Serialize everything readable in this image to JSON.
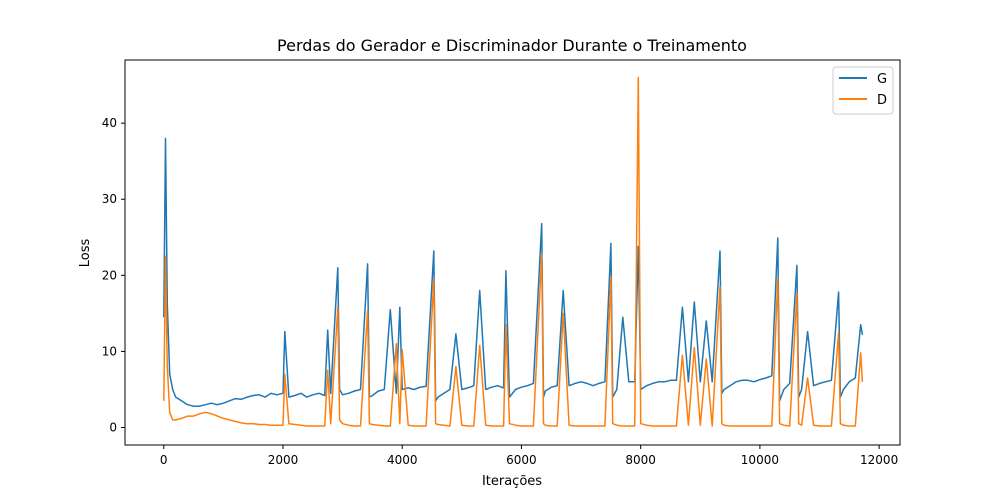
{
  "chart_data": {
    "type": "line",
    "title": "Perdas do Gerador e Discriminador Durante o Treinamento",
    "xlabel": "Iterações",
    "ylabel": "Loss",
    "xlim": [
      -650,
      12350
    ],
    "ylim": [
      -2.3,
      48.3
    ],
    "xticks": [
      0,
      2000,
      4000,
      6000,
      8000,
      10000,
      12000
    ],
    "xtick_labels": [
      "0",
      "2000",
      "4000",
      "6000",
      "8000",
      "10000",
      "12000"
    ],
    "yticks": [
      0,
      10,
      20,
      30,
      40
    ],
    "ytick_labels": [
      "0",
      "10",
      "20",
      "30",
      "40"
    ],
    "grid": false,
    "legend": {
      "placement": "upper-right"
    },
    "series": [
      {
        "name": "G",
        "color": "#1f77b4",
        "x": [
          0,
          30,
          60,
          100,
          150,
          200,
          300,
          400,
          500,
          600,
          700,
          800,
          900,
          1000,
          1100,
          1200,
          1300,
          1400,
          1500,
          1600,
          1700,
          1800,
          1900,
          2000,
          2030,
          2100,
          2200,
          2300,
          2400,
          2500,
          2600,
          2700,
          2750,
          2800,
          2920,
          2950,
          3000,
          3100,
          3200,
          3300,
          3420,
          3450,
          3500,
          3600,
          3700,
          3800,
          3900,
          3960,
          4000,
          4100,
          4200,
          4300,
          4400,
          4530,
          4560,
          4600,
          4700,
          4800,
          4900,
          5000,
          5100,
          5200,
          5300,
          5400,
          5500,
          5600,
          5700,
          5740,
          5800,
          5900,
          6000,
          6100,
          6200,
          6340,
          6370,
          6400,
          6500,
          6600,
          6700,
          6800,
          6900,
          7000,
          7100,
          7200,
          7300,
          7400,
          7500,
          7530,
          7600,
          7700,
          7800,
          7900,
          7960,
          8000,
          8100,
          8200,
          8300,
          8400,
          8500,
          8600,
          8700,
          8800,
          8900,
          9000,
          9100,
          9200,
          9330,
          9360,
          9400,
          9500,
          9600,
          9700,
          9800,
          9900,
          10000,
          10100,
          10200,
          10300,
          10330,
          10400,
          10500,
          10620,
          10650,
          10700,
          10800,
          10900,
          11000,
          11100,
          11200,
          11320,
          11350,
          11400,
          11500,
          11600,
          11690,
          11720
        ],
        "values": [
          14.5,
          38.0,
          16.2,
          7.0,
          5.0,
          4.0,
          3.5,
          3.0,
          2.8,
          2.8,
          3.0,
          3.2,
          3.0,
          3.2,
          3.5,
          3.8,
          3.7,
          4.0,
          4.2,
          4.3,
          4.0,
          4.5,
          4.3,
          4.5,
          12.6,
          4.0,
          4.2,
          4.5,
          4.0,
          4.3,
          4.5,
          4.2,
          12.8,
          4.5,
          21.0,
          5.0,
          4.3,
          4.5,
          4.8,
          5.0,
          21.5,
          4.0,
          4.2,
          4.8,
          5.0,
          15.5,
          4.5,
          15.8,
          5.0,
          5.2,
          5.0,
          5.3,
          5.4,
          23.2,
          3.5,
          4.0,
          4.5,
          5.0,
          12.3,
          5.0,
          5.2,
          5.5,
          18.0,
          5.0,
          5.3,
          5.5,
          5.2,
          20.6,
          4.0,
          5.0,
          5.3,
          5.5,
          5.8,
          26.8,
          4.0,
          4.8,
          5.3,
          5.5,
          18.0,
          5.5,
          5.8,
          6.0,
          5.8,
          5.5,
          5.8,
          6.0,
          24.2,
          4.0,
          5.0,
          14.5,
          6.0,
          6.0,
          23.8,
          5.0,
          5.5,
          5.8,
          6.0,
          6.0,
          6.2,
          6.2,
          15.8,
          6.0,
          16.5,
          6.0,
          14.0,
          6.0,
          23.2,
          4.5,
          5.0,
          5.5,
          6.0,
          6.2,
          6.2,
          6.0,
          6.3,
          6.5,
          6.8,
          24.9,
          3.5,
          5.0,
          5.8,
          21.3,
          4.0,
          5.0,
          12.6,
          5.5,
          5.8,
          6.0,
          6.2,
          17.8,
          4.0,
          5.0,
          6.0,
          6.5,
          13.5,
          12.2
        ]
      },
      {
        "name": "D",
        "color": "#ff7f0e",
        "x": [
          0,
          30,
          60,
          100,
          150,
          200,
          300,
          400,
          500,
          600,
          700,
          800,
          900,
          1000,
          1100,
          1200,
          1300,
          1400,
          1500,
          1600,
          1700,
          1800,
          1900,
          2000,
          2030,
          2100,
          2200,
          2300,
          2400,
          2500,
          2600,
          2700,
          2750,
          2800,
          2920,
          2950,
          3000,
          3100,
          3200,
          3300,
          3420,
          3450,
          3500,
          3600,
          3700,
          3800,
          3900,
          3960,
          4000,
          4100,
          4200,
          4300,
          4400,
          4530,
          4560,
          4600,
          4700,
          4800,
          4900,
          5000,
          5100,
          5200,
          5300,
          5400,
          5500,
          5600,
          5700,
          5740,
          5800,
          5900,
          6000,
          6100,
          6200,
          6340,
          6370,
          6400,
          6500,
          6600,
          6700,
          6800,
          6900,
          7000,
          7100,
          7200,
          7300,
          7400,
          7500,
          7530,
          7600,
          7700,
          7800,
          7900,
          7960,
          8000,
          8100,
          8200,
          8300,
          8400,
          8500,
          8600,
          8700,
          8800,
          8900,
          9000,
          9100,
          9200,
          9330,
          9360,
          9400,
          9500,
          9600,
          9700,
          9800,
          9900,
          10000,
          10100,
          10200,
          10300,
          10330,
          10400,
          10500,
          10620,
          10650,
          10700,
          10800,
          10900,
          11000,
          11100,
          11200,
          11320,
          11350,
          11400,
          11500,
          11600,
          11690,
          11720
        ],
        "values": [
          3.5,
          22.5,
          8.0,
          2.0,
          1.0,
          1.0,
          1.2,
          1.5,
          1.5,
          1.8,
          2.0,
          1.8,
          1.5,
          1.2,
          1.0,
          0.8,
          0.6,
          0.5,
          0.5,
          0.4,
          0.4,
          0.3,
          0.3,
          0.3,
          7.0,
          0.5,
          0.4,
          0.3,
          0.2,
          0.2,
          0.2,
          0.2,
          7.5,
          0.5,
          15.8,
          1.0,
          0.5,
          0.3,
          0.2,
          0.2,
          15.4,
          0.5,
          0.4,
          0.3,
          0.2,
          0.2,
          11.0,
          0.5,
          10.2,
          0.3,
          0.2,
          0.2,
          0.2,
          19.5,
          0.5,
          0.4,
          0.3,
          0.2,
          8.0,
          0.3,
          0.2,
          0.2,
          10.8,
          0.3,
          0.2,
          0.2,
          0.2,
          13.5,
          0.5,
          0.3,
          0.2,
          0.2,
          0.2,
          22.8,
          0.5,
          0.3,
          0.2,
          0.2,
          15.0,
          0.3,
          0.2,
          0.2,
          0.2,
          0.2,
          0.2,
          0.2,
          19.8,
          0.5,
          0.3,
          0.2,
          0.2,
          0.2,
          46.0,
          0.5,
          0.3,
          0.2,
          0.2,
          0.2,
          0.2,
          0.2,
          9.5,
          0.3,
          10.5,
          0.3,
          9.0,
          0.2,
          18.5,
          0.5,
          0.3,
          0.2,
          0.2,
          0.2,
          0.2,
          0.2,
          0.2,
          0.2,
          0.2,
          19.7,
          0.5,
          0.3,
          0.2,
          17.7,
          0.5,
          0.3,
          6.5,
          0.3,
          0.2,
          0.2,
          0.2,
          12.5,
          0.5,
          0.3,
          0.2,
          0.2,
          9.8,
          6.0
        ]
      }
    ]
  }
}
